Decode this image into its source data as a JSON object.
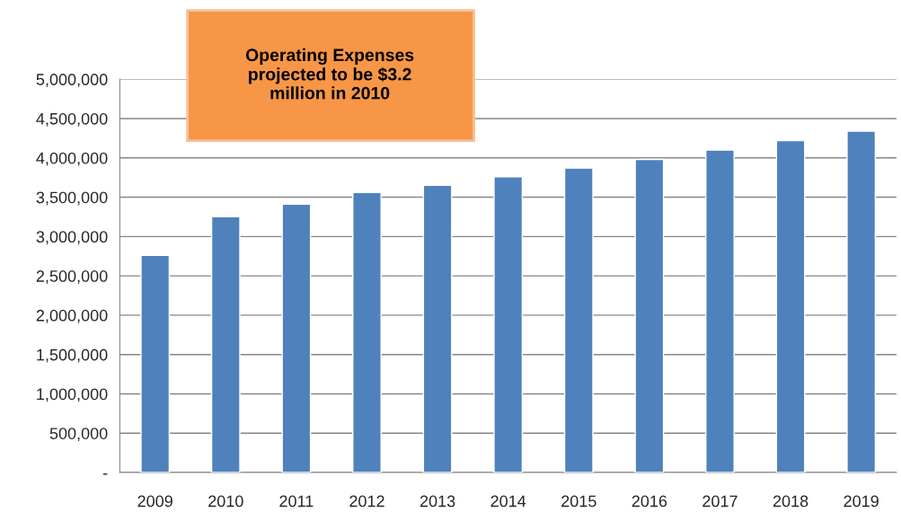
{
  "chart_data": {
    "type": "bar",
    "categories": [
      "2009",
      "2010",
      "2011",
      "2012",
      "2013",
      "2014",
      "2015",
      "2016",
      "2017",
      "2018",
      "2019"
    ],
    "values": [
      2760000,
      3250000,
      3410000,
      3560000,
      3650000,
      3760000,
      3870000,
      3980000,
      4100000,
      4220000,
      4340000
    ],
    "color": "#4f81bd",
    "ylim": [
      0,
      5000000
    ],
    "yticks": [
      {
        "value": 0,
        "label": "-"
      },
      {
        "value": 500000,
        "label": "500,000"
      },
      {
        "value": 1000000,
        "label": "1,000,000"
      },
      {
        "value": 1500000,
        "label": "1,500,000"
      },
      {
        "value": 2000000,
        "label": "2,000,000"
      },
      {
        "value": 2500000,
        "label": "2,500,000"
      },
      {
        "value": 3000000,
        "label": "3,000,000"
      },
      {
        "value": 3500000,
        "label": "3,500,000"
      },
      {
        "value": 4000000,
        "label": "4,000,000"
      },
      {
        "value": 4500000,
        "label": "4,500,000"
      },
      {
        "value": 5000000,
        "label": "5,000,000"
      }
    ],
    "grid": "y",
    "annotations": [
      "Operating Expenses\nprojected to be $3.2\nmillion in 2010"
    ]
  }
}
